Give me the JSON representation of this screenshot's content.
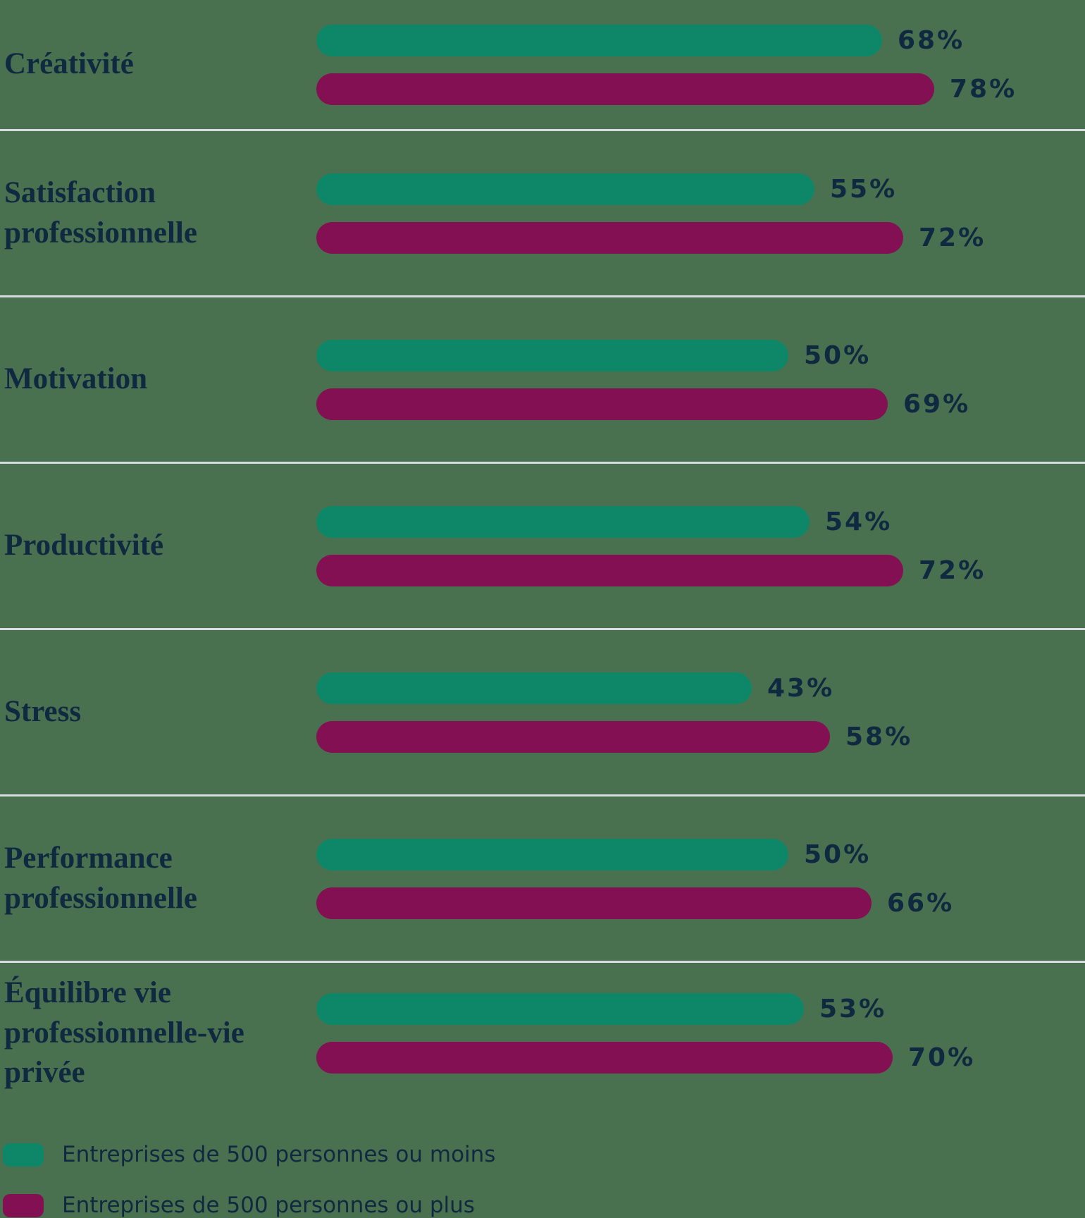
{
  "colors": {
    "background": "#4A714F",
    "text": "#0F2940",
    "divider": "#D5DDE1"
  },
  "chart_data": {
    "type": "bar",
    "orientation": "horizontal",
    "title": "",
    "xlabel": "",
    "ylabel": "",
    "xlim": [
      0,
      100
    ],
    "grid": false,
    "row_dividers": true,
    "value_suffix": "%",
    "legend_position": "bottom-left",
    "categories": [
      "Créativité",
      "Satisfaction professionnelle",
      "Motivation",
      "Productivité",
      "Stress",
      "Performance professionnelle",
      "Équilibre vie professionnelle-vie privée"
    ],
    "series": [
      {
        "name": "Entreprises de 500 personnes ou moins",
        "color": "#0E8769",
        "values": [
          68,
          55,
          50,
          54,
          43,
          50,
          53
        ]
      },
      {
        "name": "Entreprises de 500 personnes ou plus",
        "color": "#831052",
        "values": [
          78,
          72,
          69,
          72,
          58,
          66,
          70
        ]
      }
    ]
  }
}
